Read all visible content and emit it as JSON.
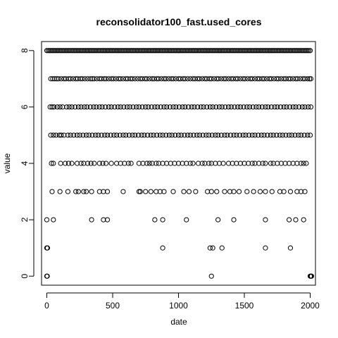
{
  "chart_data": {
    "type": "scatter",
    "title": "reconsolidator100_fast.used_cores",
    "xlabel": "date",
    "ylabel": "value",
    "xlim": [
      -40,
      2040
    ],
    "ylim": [
      -0.32,
      8.32
    ],
    "x_ticks": [
      0,
      500,
      1000,
      1500,
      2000
    ],
    "y_ticks": [
      0,
      2,
      4,
      6,
      8
    ],
    "x_tick_labels": [
      "0",
      "500",
      "1000",
      "1500",
      "2000"
    ],
    "y_tick_labels": [
      "0",
      "2",
      "4",
      "6",
      "8"
    ],
    "marker": "open-circle",
    "marker_color": "#000000",
    "grid": false,
    "legend": "none",
    "series": [
      {
        "values_by_level": [
          {
            "y": 8,
            "x": [
              0,
              10,
              20,
              30,
              40,
              50,
              60,
              70,
              80,
              90,
              100,
              110,
              120,
              130,
              140,
              150,
              160,
              170,
              180,
              190,
              200,
              210,
              220,
              230,
              240,
              250,
              260,
              270,
              280,
              290,
              300,
              310,
              320,
              330,
              340,
              350,
              360,
              370,
              380,
              390,
              400,
              410,
              420,
              430,
              440,
              450,
              460,
              470,
              480,
              490,
              500,
              510,
              520,
              530,
              540,
              550,
              560,
              570,
              580,
              590,
              600,
              610,
              620,
              630,
              640,
              650,
              660,
              670,
              680,
              690,
              700,
              710,
              720,
              730,
              740,
              750,
              760,
              770,
              780,
              790,
              800,
              810,
              820,
              830,
              840,
              850,
              860,
              870,
              880,
              890,
              900,
              910,
              920,
              930,
              940,
              950,
              960,
              970,
              980,
              990,
              1000,
              1010,
              1020,
              1030,
              1040,
              1050,
              1060,
              1070,
              1080,
              1090,
              1100,
              1110,
              1120,
              1130,
              1140,
              1150,
              1160,
              1170,
              1180,
              1190,
              1200,
              1210,
              1220,
              1230,
              1240,
              1250,
              1260,
              1270,
              1280,
              1290,
              1300,
              1310,
              1320,
              1330,
              1340,
              1350,
              1360,
              1370,
              1380,
              1390,
              1400,
              1410,
              1420,
              1430,
              1440,
              1450,
              1460,
              1470,
              1480,
              1490,
              1500,
              1510,
              1520,
              1530,
              1540,
              1550,
              1560,
              1570,
              1580,
              1590,
              1600,
              1610,
              1620,
              1630,
              1640,
              1650,
              1660,
              1670,
              1680,
              1690,
              1700,
              1710,
              1720,
              1730,
              1740,
              1750,
              1760,
              1770,
              1780,
              1790,
              1800,
              1810,
              1820,
              1830,
              1840,
              1850,
              1860,
              1870,
              1880,
              1890,
              1900,
              1910,
              1920,
              1930,
              1940,
              1950,
              1960,
              1970,
              1980,
              1990,
              2000
            ]
          },
          {
            "y": 7,
            "x": [
              30,
              45,
              60,
              75,
              90,
              110,
              130,
              145,
              165,
              180,
              200,
              220,
              235,
              255,
              270,
              290,
              310,
              330,
              345,
              360,
              380,
              400,
              415,
              435,
              450,
              470,
              490,
              505,
              525,
              545,
              560,
              580,
              600,
              615,
              635,
              650,
              670,
              690,
              710,
              725,
              745,
              760,
              780,
              800,
              815,
              835,
              850,
              870,
              890,
              905,
              925,
              945,
              960,
              980,
              1000,
              1015,
              1035,
              1050,
              1070,
              1090,
              1110,
              1125,
              1145,
              1160,
              1180,
              1200,
              1215,
              1235,
              1250,
              1270,
              1290,
              1305,
              1325,
              1345,
              1360,
              1380,
              1400,
              1415,
              1435,
              1450,
              1470,
              1490,
              1505,
              1525,
              1545,
              1560,
              1580,
              1600,
              1615,
              1635,
              1650,
              1670,
              1690,
              1705,
              1725,
              1745,
              1760,
              1780,
              1800,
              1815,
              1835,
              1850,
              1870,
              1890,
              1905,
              1925,
              1945,
              1960,
              1980,
              1995,
              2005
            ]
          },
          {
            "y": 6,
            "x": [
              25,
              40,
              55,
              80,
              100,
              120,
              150,
              170,
              190,
              215,
              240,
              260,
              285,
              305,
              330,
              355,
              375,
              400,
              420,
              445,
              470,
              490,
              515,
              540,
              560,
              585,
              610,
              630,
              655,
              680,
              700,
              725,
              750,
              770,
              795,
              820,
              840,
              865,
              890,
              910,
              935,
              960,
              980,
              1005,
              1030,
              1050,
              1075,
              1100,
              1120,
              1145,
              1170,
              1190,
              1215,
              1240,
              1260,
              1285,
              1310,
              1330,
              1355,
              1380,
              1400,
              1425,
              1450,
              1470,
              1495,
              1520,
              1540,
              1565,
              1590,
              1610,
              1635,
              1660,
              1680,
              1705,
              1730,
              1750,
              1775,
              1800,
              1820,
              1845,
              1870,
              1890,
              1915,
              1940,
              1960,
              1985,
              2005
            ]
          },
          {
            "y": 5,
            "x": [
              30,
              50,
              70,
              95,
              110,
              130,
              160,
              180,
              205,
              230,
              250,
              275,
              300,
              320,
              345,
              370,
              390,
              415,
              440,
              460,
              485,
              510,
              530,
              555,
              580,
              600,
              625,
              650,
              670,
              695,
              720,
              740,
              765,
              790,
              810,
              835,
              860,
              880,
              905,
              930,
              950,
              975,
              1000,
              1020,
              1045,
              1070,
              1090,
              1115,
              1140,
              1160,
              1185,
              1210,
              1230,
              1255,
              1280,
              1300,
              1325,
              1350,
              1370,
              1395,
              1420,
              1440,
              1465,
              1490,
              1510,
              1535,
              1560,
              1580,
              1605,
              1630,
              1650,
              1675,
              1700,
              1720,
              1745,
              1770,
              1790,
              1815,
              1840,
              1860,
              1885,
              1910,
              1930,
              1955,
              1980,
              2000
            ]
          },
          {
            "y": 4,
            "x": [
              35,
              50,
              105,
              140,
              165,
              190,
              230,
              260,
              280,
              310,
              335,
              360,
              400,
              425,
              450,
              490,
              530,
              560,
              590,
              620,
              640,
              700,
              730,
              760,
              780,
              800,
              830,
              850,
              880,
              910,
              940,
              970,
              1000,
              1030,
              1060,
              1090,
              1110,
              1150,
              1180,
              1200,
              1230,
              1250,
              1280,
              1310,
              1340,
              1380,
              1410,
              1440,
              1470,
              1500,
              1530,
              1560,
              1580,
              1610,
              1640,
              1660,
              1700,
              1720,
              1750,
              1780,
              1810,
              1840,
              1870,
              1900,
              1930,
              1950,
              1970
            ]
          },
          {
            "y": 3,
            "x": [
              40,
              100,
              160,
              220,
              240,
              280,
              300,
              340,
              400,
              430,
              460,
              580,
              700,
              710,
              750,
              790,
              830,
              860,
              890,
              960,
              1040,
              1080,
              1130,
              1220,
              1250,
              1290,
              1350,
              1390,
              1420,
              1460,
              1520,
              1570,
              1620,
              1660,
              1710,
              1770,
              1800,
              1850,
              1900,
              1930,
              1960
            ]
          },
          {
            "y": 2,
            "x": [
              0,
              50,
              340,
              430,
              460,
              820,
              880,
              1060,
              1300,
              1420,
              1660,
              1840,
              1890,
              1950
            ]
          },
          {
            "y": 1,
            "x": [
              0,
              5,
              880,
              1240,
              1260,
              1330,
              1660,
              1850
            ]
          },
          {
            "y": 0,
            "x": [
              0,
              3,
              1250,
              2000,
              2005,
              2010
            ]
          }
        ]
      }
    ]
  }
}
